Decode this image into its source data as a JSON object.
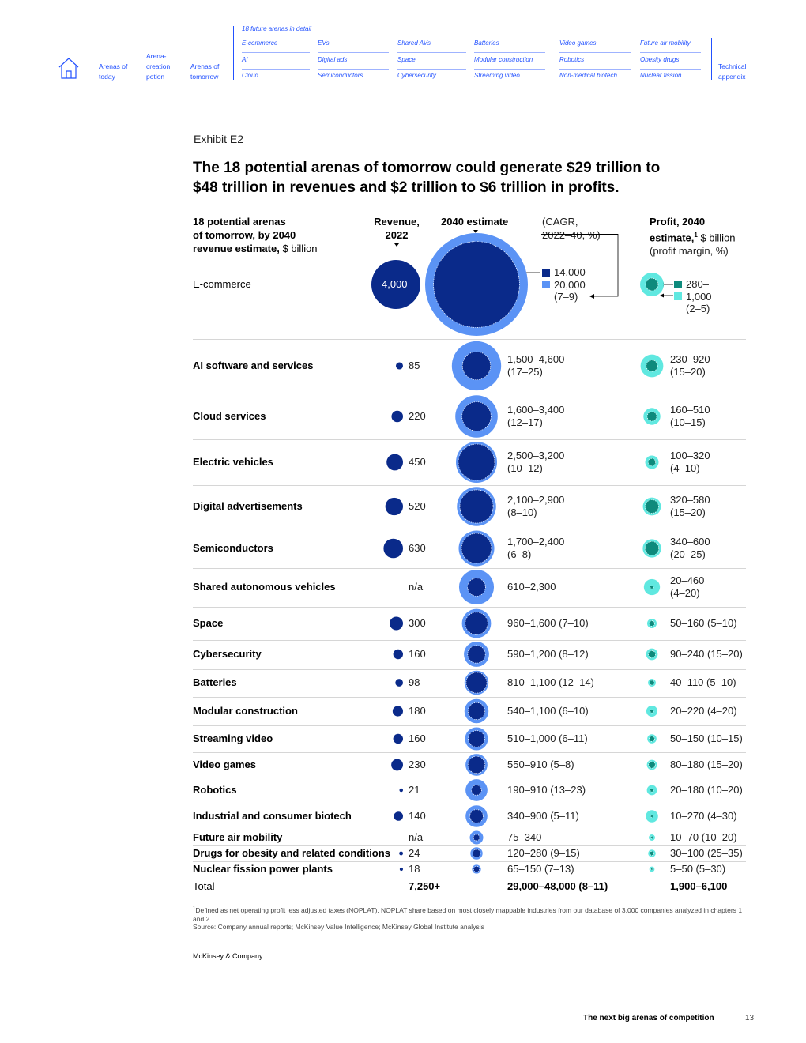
{
  "nav": {
    "section_title": "18 future arenas in detail",
    "items": [
      {
        "label": "Arenas of today"
      },
      {
        "label": "Arena-creation potion"
      },
      {
        "label": "Arenas of tomorrow"
      },
      {
        "label": "Technical appendix"
      }
    ],
    "arenas": [
      [
        "E-commerce",
        "EVs",
        "Shared AVs",
        "Batteries",
        "Video games",
        "Future air mobility"
      ],
      [
        "AI",
        "Digital ads",
        "Space",
        "Modular construction",
        "Robotics",
        "Obesity drugs"
      ],
      [
        "Cloud",
        "Semiconductors",
        "Cybersecurity",
        "Streaming video",
        "Non-medical biotech",
        "Nuclear fission"
      ]
    ]
  },
  "exhibit": {
    "label": "Exhibit E2",
    "title_line1": "The 18 potential arenas of tomorrow could generate $29 trillion to",
    "title_line2": "$48 trillion in revenues and $2 trillion to $6 trillion in profits."
  },
  "headers": {
    "col1_line1": "18 potential arenas",
    "col1_line2": "of tomorrow, by 2040",
    "col1_line3_bold": "revenue estimate,",
    "col1_line3_rest": " $ billion",
    "rev_line1": "Revenue,",
    "rev_line2": "2022",
    "est_line1": "2040 estimate",
    "cagr_line1": "(CAGR,",
    "cagr_line2": "2022–40, %)",
    "profit_line1": "Profit, 2040",
    "profit_line2_bold": "estimate,",
    "profit_sup": "1",
    "profit_line2_rest": " $ billion",
    "profit_line3": "(profit margin, %)"
  },
  "legend": {
    "est_high": "14,000–",
    "est_low": "20,000",
    "est_cagr": "(7–9)",
    "profit_high": "280–",
    "profit_low": "1,000",
    "profit_margin": "(2–5)"
  },
  "colors": {
    "dark_navy": "#0a2a8a",
    "light_blue": "#5b93f5",
    "teal_dark": "#0e8a7c",
    "teal_light": "#60e8e0",
    "accent_blue": "#2251ff"
  },
  "rows": [
    {
      "name": "E-commerce",
      "rev": "4,000",
      "est": "",
      "prof": ""
    },
    {
      "name": "AI software and services",
      "rev": "85",
      "est": "1,500–4,600",
      "est2": "(17–25)",
      "prof": "230–920",
      "prof2": "(15–20)"
    },
    {
      "name": "Cloud services",
      "rev": "220",
      "est": "1,600–3,400",
      "est2": "(12–17)",
      "prof": "160–510",
      "prof2": "(10–15)"
    },
    {
      "name": "Electric vehicles",
      "rev": "450",
      "est": "2,500–3,200",
      "est2": "(10–12)",
      "prof": "100–320",
      "prof2": "(4–10)"
    },
    {
      "name": "Digital advertisements",
      "rev": "520",
      "est": "2,100–2,900",
      "est2": "(8–10)",
      "prof": "320–580",
      "prof2": "(15–20)"
    },
    {
      "name": "Semiconductors",
      "rev": "630",
      "est": "1,700–2,400",
      "est2": "(6–8)",
      "prof": "340–600",
      "prof2": "(20–25)"
    },
    {
      "name": "Shared autonomous vehicles",
      "rev": "n/a",
      "est": "610–2,300",
      "est2": "",
      "prof": "20–460",
      "prof2": "(4–20)"
    },
    {
      "name": "Space",
      "rev": "300",
      "est": "960–1,600 (7–10)",
      "est2": "",
      "prof": "50–160 (5–10)",
      "prof2": ""
    },
    {
      "name": "Cybersecurity",
      "rev": "160",
      "est": "590–1,200 (8–12)",
      "est2": "",
      "prof": "90–240 (15–20)",
      "prof2": ""
    },
    {
      "name": "Batteries",
      "rev": "98",
      "est": "810–1,100 (12–14)",
      "est2": "",
      "prof": "40–110 (5–10)",
      "prof2": ""
    },
    {
      "name": "Modular construction",
      "rev": "180",
      "est": "540–1,100 (6–10)",
      "est2": "",
      "prof": "20–220 (4–20)",
      "prof2": ""
    },
    {
      "name": "Streaming video",
      "rev": "160",
      "est": "510–1,000 (6–11)",
      "est2": "",
      "prof": "50–150 (10–15)",
      "prof2": ""
    },
    {
      "name": "Video games",
      "rev": "230",
      "est": "550–910 (5–8)",
      "est2": "",
      "prof": "80–180 (15–20)",
      "prof2": ""
    },
    {
      "name": "Robotics",
      "rev": "21",
      "est": "190–910 (13–23)",
      "est2": "",
      "prof": "20–180 (10–20)",
      "prof2": ""
    },
    {
      "name": "Industrial and consumer biotech",
      "rev": "140",
      "est": "340–900 (5–11)",
      "est2": "",
      "prof": "10–270 (4–30)",
      "prof2": ""
    },
    {
      "name": "Future air mobility",
      "rev": "n/a",
      "est": "75–340",
      "est2": "",
      "prof": "10–70 (10–20)",
      "prof2": ""
    },
    {
      "name": "Drugs for obesity and related conditions",
      "rev": "24",
      "est": "120–280 (9–15)",
      "est2": "",
      "prof": "30–100 (25–35)",
      "prof2": ""
    },
    {
      "name": "Nuclear fission power plants",
      "rev": "18",
      "est": "65–150 (7–13)",
      "est2": "",
      "prof": "5–50 (5–30)",
      "prof2": ""
    }
  ],
  "total": {
    "label": "Total",
    "rev": "7,250+",
    "est": "29,000–48,000 (8–11)",
    "prof": "1,900–6,100"
  },
  "chart_data": {
    "type": "bubble-table",
    "series": [
      {
        "name": "Revenue, 2022",
        "values": [
          4000,
          85,
          220,
          450,
          520,
          630,
          null,
          300,
          160,
          98,
          180,
          160,
          230,
          21,
          140,
          null,
          24,
          18
        ]
      },
      {
        "name": "2040 estimate low",
        "values": [
          14000,
          1500,
          1600,
          2500,
          2100,
          1700,
          610,
          960,
          590,
          810,
          540,
          510,
          550,
          190,
          340,
          75,
          120,
          65
        ]
      },
      {
        "name": "2040 estimate high",
        "values": [
          20000,
          4600,
          3400,
          3200,
          2900,
          2400,
          2300,
          1600,
          1200,
          1100,
          1100,
          1000,
          910,
          910,
          900,
          340,
          280,
          150
        ]
      },
      {
        "name": "Profit low",
        "values": [
          280,
          230,
          160,
          100,
          320,
          340,
          20,
          50,
          90,
          40,
          20,
          50,
          80,
          20,
          10,
          10,
          30,
          5
        ]
      },
      {
        "name": "Profit high",
        "values": [
          1000,
          920,
          510,
          320,
          580,
          600,
          460,
          160,
          240,
          110,
          220,
          150,
          180,
          180,
          270,
          70,
          100,
          50
        ]
      }
    ],
    "categories": [
      "E-commerce",
      "AI software and services",
      "Cloud services",
      "Electric vehicles",
      "Digital advertisements",
      "Semiconductors",
      "Shared autonomous vehicles",
      "Space",
      "Cybersecurity",
      "Batteries",
      "Modular construction",
      "Streaming video",
      "Video games",
      "Robotics",
      "Industrial and consumer biotech",
      "Future air mobility",
      "Drugs for obesity and related conditions",
      "Nuclear fission power plants"
    ]
  },
  "footnotes": {
    "note1": "Defined as net operating profit less adjusted taxes (NOPLAT). NOPLAT share based on most closely mappable industries from our database of 3,000 companies analyzed in chapters 1 and 2.",
    "note1_marker": "1",
    "source": "Source: Company annual reports; McKinsey Value Intelligence; McKinsey Global Institute analysis",
    "publisher": "McKinsey & Company"
  },
  "footer": {
    "title": "The next big arenas of competition",
    "page": "13"
  }
}
